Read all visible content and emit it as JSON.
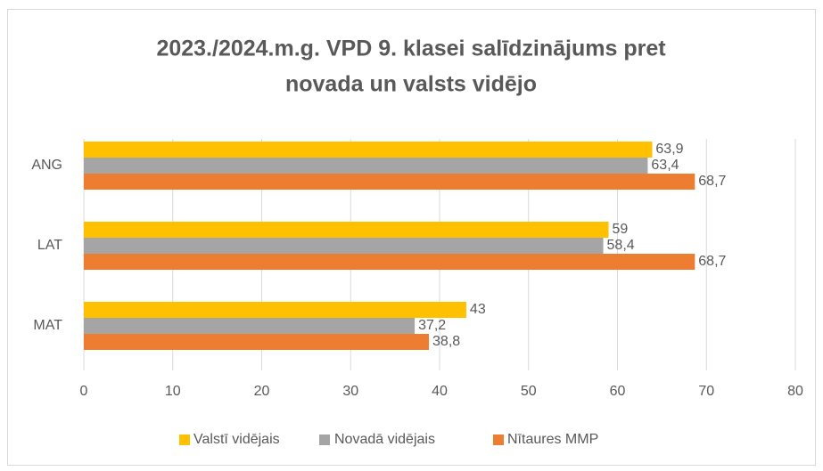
{
  "chart_data": {
    "type": "hbar",
    "title": [
      "2023./2024.m.g. VPD 9. klasei salīdzinājums pret",
      "novada un valsts vidējo"
    ],
    "categories": [
      "ANG",
      "LAT",
      "MAT"
    ],
    "series": [
      {
        "name": "Valstī vidējais",
        "color": "#FFC000",
        "values": [
          63.9,
          59,
          43
        ],
        "value_labels": [
          "63,9",
          "59",
          "43"
        ]
      },
      {
        "name": "Novadā vidējais",
        "color": "#A5A5A5",
        "values": [
          63.4,
          58.4,
          37.2
        ],
        "value_labels": [
          "63,4",
          "58,4",
          "37,2"
        ]
      },
      {
        "name": "Nītaures MMP",
        "color": "#ED7D31",
        "values": [
          68.7,
          68.7,
          38.8
        ],
        "value_labels": [
          "68,7",
          "68,7",
          "38,8"
        ]
      }
    ],
    "xlim": [
      0,
      80
    ],
    "xticks": [
      0,
      10,
      20,
      30,
      40,
      50,
      60,
      70,
      80
    ],
    "grid": true,
    "legend": "bottom"
  }
}
